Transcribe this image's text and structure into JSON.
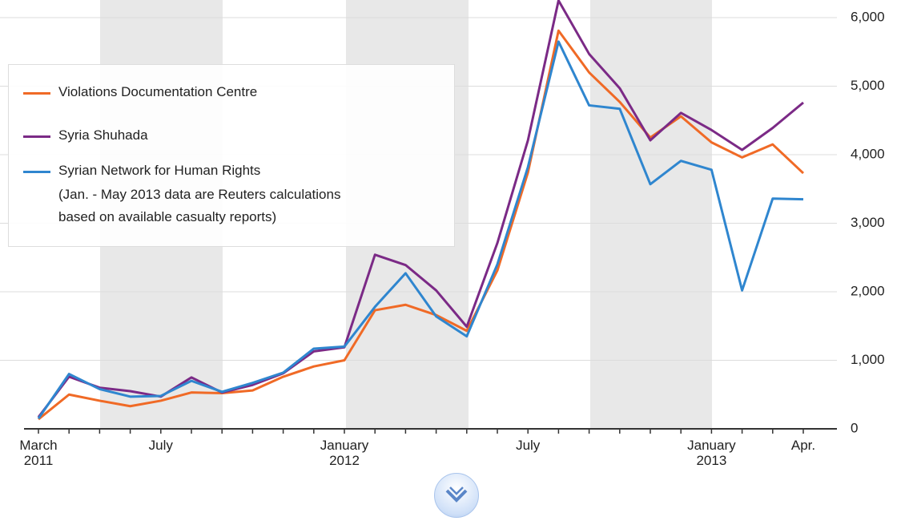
{
  "chart_data": {
    "type": "line",
    "categories": [
      "March\n2011",
      null,
      null,
      null,
      "July",
      null,
      null,
      null,
      null,
      null,
      "January\n2012",
      null,
      null,
      null,
      null,
      null,
      "July",
      null,
      null,
      null,
      null,
      null,
      "January\n2013",
      null,
      null,
      "Apr."
    ],
    "series": [
      {
        "name": "Violations Documentation Centre",
        "color": "#f06a26",
        "values": [
          140,
          500,
          410,
          330,
          410,
          530,
          520,
          560,
          760,
          910,
          1000,
          1730,
          1810,
          1660,
          1430,
          2310,
          3740,
          5810,
          5200,
          4770,
          4250,
          4560,
          4180,
          3960,
          4150,
          3730
        ]
      },
      {
        "name": "Syria Shuhada",
        "color": "#7b2a86",
        "values": [
          170,
          760,
          600,
          550,
          470,
          750,
          530,
          640,
          810,
          1130,
          1190,
          2540,
          2390,
          2020,
          1490,
          2710,
          4210,
          6250,
          5470,
          4970,
          4210,
          4610,
          4360,
          4070,
          4390,
          4760
        ]
      },
      {
        "name": "Syrian Network for Human Rights",
        "color": "#2f86cf",
        "values": [
          150,
          800,
          580,
          470,
          480,
          700,
          540,
          670,
          820,
          1170,
          1200,
          1780,
          2270,
          1640,
          1350,
          2400,
          3820,
          5650,
          4720,
          4670,
          3570,
          3910,
          3780,
          2020,
          3360,
          3350
        ]
      }
    ],
    "legend_note": [
      "(Jan. - May 2013 data are Reuters calculations",
      "based on available casualty reports)"
    ],
    "ylim": [
      0,
      6000
    ],
    "yticks": [
      0,
      {
        "value": 1000,
        "label": "1,000"
      },
      {
        "value": 2000,
        "label": "2,000"
      },
      {
        "value": 3000,
        "label": "3,000"
      },
      {
        "value": 4000,
        "label": "4,000"
      },
      {
        "value": 5000,
        "label": "5,000"
      },
      {
        "value": 6000,
        "label": "6,000"
      }
    ],
    "grid": true
  }
}
